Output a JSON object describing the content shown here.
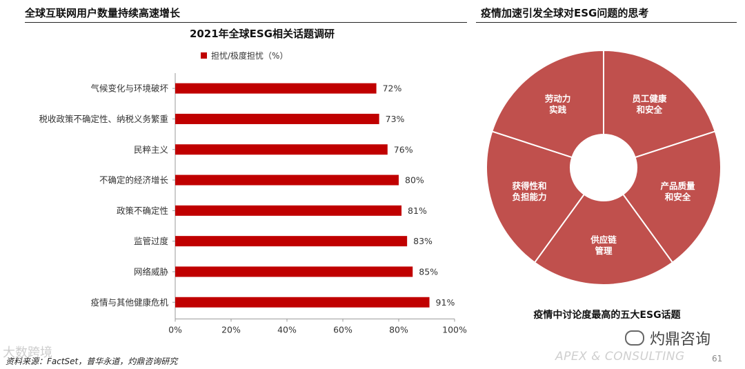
{
  "header": {
    "left_title": "全球互联网用户数量持续高速增长",
    "right_title": "疫情加速引发全球对ESG问题的思考"
  },
  "chart_data": [
    {
      "type": "bar",
      "orientation": "horizontal",
      "title": "2021年全球ESG相关话题调研",
      "legend": "担忧/极度担忧（%）",
      "categories": [
        "气候变化与环境破坏",
        "税收政策不确定性、纳税义务繁重",
        "民粹主义",
        "不确定的经济增长",
        "政策不确定性",
        "监管过度",
        "网络威胁",
        "疫情与其他健康危机"
      ],
      "values": [
        72,
        73,
        76,
        80,
        81,
        83,
        85,
        91
      ],
      "data_labels": [
        "72%",
        "73%",
        "76%",
        "80%",
        "81%",
        "83%",
        "85%",
        "91%"
      ],
      "xlim": [
        0,
        100
      ],
      "xticks": [
        "0%",
        "20%",
        "40%",
        "60%",
        "80%",
        "100%"
      ],
      "grid": false,
      "color": "#c00000"
    },
    {
      "type": "pie",
      "subtype": "donut",
      "title": "疫情中讨论度最高的五大ESG话题",
      "slices": [
        {
          "label": "员工健康\n和安全",
          "value": 1
        },
        {
          "label": "产品质量\n和安全",
          "value": 1
        },
        {
          "label": "供应链\n管理",
          "value": 1
        },
        {
          "label": "获得性和\n负担能力",
          "value": 1
        },
        {
          "label": "劳动力\n实践",
          "value": 1
        }
      ],
      "color": "#c0504d"
    }
  ],
  "footer": {
    "source": "资料来源：FactSet，普华永道，灼鼎咨询研究",
    "watermark_left": "大数跨境",
    "watermark_right": "灼鼎咨询",
    "brand": "APEX & CONSULTING",
    "page_number": "61"
  }
}
